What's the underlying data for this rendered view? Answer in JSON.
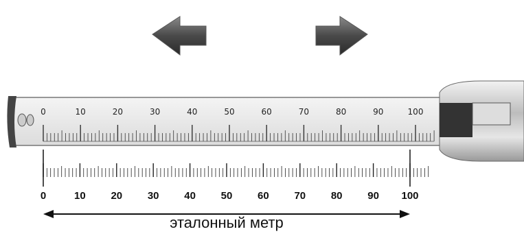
{
  "tape": {
    "labels": [
      "0",
      "10",
      "20",
      "30",
      "40",
      "50",
      "60",
      "70",
      "80",
      "90",
      "100"
    ]
  },
  "reference": {
    "labels": [
      "0",
      "10",
      "20",
      "30",
      "40",
      "50",
      "60",
      "70",
      "80",
      "90",
      "100"
    ],
    "caption": "эталонный метр"
  }
}
